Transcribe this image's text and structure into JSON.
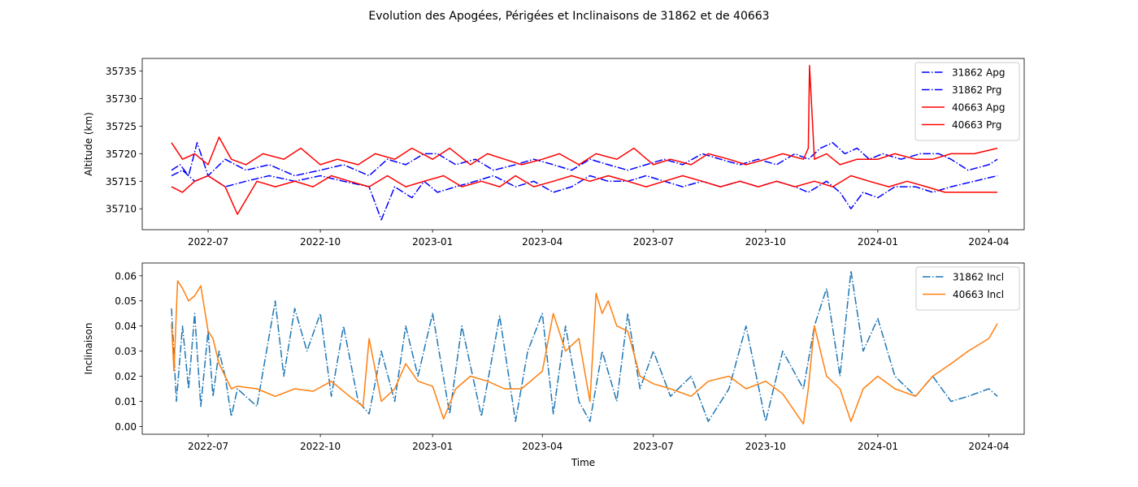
{
  "chart_data": {
    "type": "line",
    "title": "Evolution des Apogées, Périgées et Inclinaisons de 31862 et de 40663",
    "panels": [
      {
        "id": "altitude",
        "ylabel": "Altitude (km)",
        "xlabel": "",
        "ylim": [
          35706.2,
          35737.3
        ],
        "xlim": [
          "2022-05-08",
          "2024-04-30"
        ],
        "yticks": [
          35710,
          35715,
          35720,
          35725,
          35730,
          35735
        ],
        "xticks": [
          "2022-07",
          "2022-10",
          "2023-01",
          "2023-04",
          "2023-07",
          "2023-10",
          "2024-01",
          "2024-04"
        ],
        "legend": "top-right",
        "series": [
          {
            "name": "31862 Apg",
            "color": "#0000ff",
            "style": "dashdot",
            "x": [
              "2022-06-01",
              "2022-06-08",
              "2022-06-15",
              "2022-06-22",
              "2022-07-01",
              "2022-07-15",
              "2022-08-01",
              "2022-08-20",
              "2022-09-10",
              "2022-10-01",
              "2022-10-20",
              "2022-11-10",
              "2022-11-25",
              "2022-12-10",
              "2022-12-25",
              "2023-01-05",
              "2023-01-20",
              "2023-02-05",
              "2023-02-20",
              "2023-03-10",
              "2023-03-25",
              "2023-04-10",
              "2023-04-25",
              "2023-05-10",
              "2023-05-25",
              "2023-06-10",
              "2023-06-25",
              "2023-07-10",
              "2023-07-25",
              "2023-08-10",
              "2023-08-25",
              "2023-09-10",
              "2023-09-25",
              "2023-10-10",
              "2023-10-25",
              "2023-11-05",
              "2023-11-15",
              "2023-11-25",
              "2023-12-05",
              "2023-12-15",
              "2023-12-25",
              "2024-01-05",
              "2024-01-20",
              "2024-02-05",
              "2024-02-20",
              "2024-03-01",
              "2024-03-15",
              "2024-04-01",
              "2024-04-08"
            ],
            "y": [
              35717,
              35718,
              35716,
              35722,
              35716,
              35719,
              35717,
              35718,
              35716,
              35717,
              35718,
              35716,
              35719,
              35718,
              35720,
              35720,
              35718,
              35719,
              35717,
              35718,
              35719,
              35718,
              35717,
              35719,
              35718,
              35717,
              35718,
              35719,
              35718,
              35720,
              35719,
              35718,
              35719,
              35718,
              35720,
              35719,
              35721,
              35722,
              35720,
              35721,
              35719,
              35720,
              35719,
              35720,
              35720,
              35719,
              35717,
              35718,
              35719
            ]
          },
          {
            "name": "31862 Prg",
            "color": "#0000ff",
            "style": "dashdot",
            "x": [
              "2022-06-01",
              "2022-06-10",
              "2022-06-20",
              "2022-07-01",
              "2022-07-15",
              "2022-08-01",
              "2022-08-20",
              "2022-09-10",
              "2022-10-01",
              "2022-10-20",
              "2022-11-10",
              "2022-11-20",
              "2022-12-01",
              "2022-12-15",
              "2022-12-25",
              "2023-01-05",
              "2023-01-20",
              "2023-02-05",
              "2023-02-20",
              "2023-03-10",
              "2023-03-25",
              "2023-04-10",
              "2023-04-25",
              "2023-05-10",
              "2023-05-25",
              "2023-06-10",
              "2023-06-25",
              "2023-07-10",
              "2023-07-25",
              "2023-08-10",
              "2023-08-25",
              "2023-09-10",
              "2023-09-25",
              "2023-10-10",
              "2023-10-25",
              "2023-11-05",
              "2023-11-20",
              "2023-12-01",
              "2023-12-10",
              "2023-12-20",
              "2024-01-01",
              "2024-01-15",
              "2024-02-01",
              "2024-02-15",
              "2024-03-01",
              "2024-03-20",
              "2024-04-08"
            ],
            "y": [
              35716,
              35717,
              35715,
              35716,
              35714,
              35715,
              35716,
              35715,
              35716,
              35715,
              35714,
              35708,
              35714,
              35712,
              35715,
              35713,
              35714,
              35715,
              35716,
              35714,
              35715,
              35713,
              35714,
              35716,
              35715,
              35715,
              35716,
              35715,
              35714,
              35715,
              35714,
              35715,
              35714,
              35715,
              35714,
              35713,
              35715,
              35713,
              35710,
              35713,
              35712,
              35714,
              35714,
              35713,
              35714,
              35715,
              35716
            ]
          },
          {
            "name": "40663 Apg",
            "color": "#ff0000",
            "style": "solid",
            "x": [
              "2022-06-01",
              "2022-06-10",
              "2022-06-20",
              "2022-07-01",
              "2022-07-10",
              "2022-07-20",
              "2022-08-01",
              "2022-08-15",
              "2022-09-01",
              "2022-09-15",
              "2022-10-01",
              "2022-10-15",
              "2022-11-01",
              "2022-11-15",
              "2022-12-01",
              "2022-12-15",
              "2023-01-01",
              "2023-01-15",
              "2023-02-01",
              "2023-02-15",
              "2023-03-01",
              "2023-03-15",
              "2023-04-01",
              "2023-04-15",
              "2023-05-01",
              "2023-05-15",
              "2023-06-01",
              "2023-06-15",
              "2023-07-01",
              "2023-07-15",
              "2023-08-01",
              "2023-08-15",
              "2023-09-01",
              "2023-09-15",
              "2023-10-01",
              "2023-10-15",
              "2023-11-01",
              "2023-11-05",
              "2023-11-06",
              "2023-11-10",
              "2023-11-20",
              "2023-12-01",
              "2023-12-15",
              "2024-01-01",
              "2024-01-15",
              "2024-02-01",
              "2024-02-15",
              "2024-03-01",
              "2024-03-20",
              "2024-04-08"
            ],
            "y": [
              35722,
              35719,
              35720,
              35718,
              35723,
              35719,
              35718,
              35720,
              35719,
              35721,
              35718,
              35719,
              35718,
              35720,
              35719,
              35721,
              35719,
              35721,
              35718,
              35720,
              35719,
              35718,
              35719,
              35720,
              35718,
              35720,
              35719,
              35721,
              35718,
              35719,
              35718,
              35720,
              35719,
              35718,
              35719,
              35720,
              35719,
              35721,
              35736,
              35719,
              35720,
              35718,
              35719,
              35719,
              35720,
              35719,
              35719,
              35720,
              35720,
              35721
            ]
          },
          {
            "name": "40663 Prg",
            "color": "#ff0000",
            "style": "solid",
            "x": [
              "2022-06-01",
              "2022-06-10",
              "2022-06-20",
              "2022-07-01",
              "2022-07-15",
              "2022-07-25",
              "2022-08-10",
              "2022-08-25",
              "2022-09-10",
              "2022-09-25",
              "2022-10-10",
              "2022-10-25",
              "2022-11-10",
              "2022-11-25",
              "2022-12-10",
              "2022-12-25",
              "2023-01-10",
              "2023-01-25",
              "2023-02-10",
              "2023-02-25",
              "2023-03-10",
              "2023-03-25",
              "2023-04-10",
              "2023-04-25",
              "2023-05-10",
              "2023-05-25",
              "2023-06-10",
              "2023-06-25",
              "2023-07-10",
              "2023-07-25",
              "2023-08-10",
              "2023-08-25",
              "2023-09-10",
              "2023-09-25",
              "2023-10-10",
              "2023-10-25",
              "2023-11-10",
              "2023-11-25",
              "2023-12-10",
              "2023-12-25",
              "2024-01-10",
              "2024-01-25",
              "2024-02-10",
              "2024-02-25",
              "2024-03-15",
              "2024-04-08"
            ],
            "y": [
              35714,
              35713,
              35715,
              35716,
              35714,
              35709,
              35715,
              35714,
              35715,
              35714,
              35716,
              35715,
              35714,
              35716,
              35714,
              35715,
              35716,
              35714,
              35715,
              35714,
              35716,
              35714,
              35715,
              35716,
              35715,
              35716,
              35715,
              35714,
              35715,
              35716,
              35715,
              35714,
              35715,
              35714,
              35715,
              35714,
              35715,
              35714,
              35716,
              35715,
              35714,
              35715,
              35714,
              35713,
              35713,
              35713
            ]
          }
        ]
      },
      {
        "id": "inclination",
        "ylabel": "Inclinaison",
        "xlabel": "Time",
        "ylim": [
          -0.0031,
          0.0651
        ],
        "xlim": [
          "2022-05-08",
          "2024-04-30"
        ],
        "yticks": [
          0.0,
          0.01,
          0.02,
          0.03,
          0.04,
          0.05,
          0.06
        ],
        "ytick_labels": [
          "0.00",
          "0.01",
          "0.02",
          "0.03",
          "0.04",
          "0.05",
          "0.06"
        ],
        "xticks": [
          "2022-07",
          "2022-10",
          "2023-01",
          "2023-04",
          "2023-07",
          "2023-10",
          "2024-01",
          "2024-04"
        ],
        "legend": "top-right",
        "series": [
          {
            "name": "31862 Incl",
            "color": "#1f77b4",
            "style": "dashdot",
            "x": [
              "2022-06-01",
              "2022-06-05",
              "2022-06-10",
              "2022-06-15",
              "2022-06-20",
              "2022-06-25",
              "2022-07-01",
              "2022-07-05",
              "2022-07-10",
              "2022-07-15",
              "2022-07-20",
              "2022-07-25",
              "2022-08-10",
              "2022-08-25",
              "2022-09-01",
              "2022-09-10",
              "2022-09-20",
              "2022-10-01",
              "2022-10-10",
              "2022-10-20",
              "2022-11-01",
              "2022-11-10",
              "2022-11-20",
              "2022-12-01",
              "2022-12-10",
              "2022-12-20",
              "2023-01-01",
              "2023-01-15",
              "2023-01-25",
              "2023-02-10",
              "2023-02-25",
              "2023-03-10",
              "2023-03-20",
              "2023-04-01",
              "2023-04-10",
              "2023-04-20",
              "2023-05-01",
              "2023-05-10",
              "2023-05-20",
              "2023-06-01",
              "2023-06-10",
              "2023-06-20",
              "2023-07-01",
              "2023-07-15",
              "2023-08-01",
              "2023-08-15",
              "2023-09-01",
              "2023-09-15",
              "2023-10-01",
              "2023-10-15",
              "2023-11-01",
              "2023-11-10",
              "2023-11-20",
              "2023-12-01",
              "2023-12-10",
              "2023-12-20",
              "2024-01-01",
              "2024-01-15",
              "2024-02-01",
              "2024-02-15",
              "2024-03-01",
              "2024-03-15",
              "2024-04-01",
              "2024-04-08"
            ],
            "y": [
              0.047,
              0.01,
              0.04,
              0.015,
              0.045,
              0.008,
              0.038,
              0.012,
              0.03,
              0.02,
              0.004,
              0.015,
              0.008,
              0.05,
              0.02,
              0.047,
              0.03,
              0.045,
              0.012,
              0.04,
              0.01,
              0.005,
              0.03,
              0.01,
              0.04,
              0.02,
              0.045,
              0.005,
              0.04,
              0.004,
              0.044,
              0.002,
              0.03,
              0.045,
              0.005,
              0.04,
              0.01,
              0.002,
              0.03,
              0.01,
              0.045,
              0.015,
              0.03,
              0.012,
              0.02,
              0.002,
              0.015,
              0.04,
              0.002,
              0.03,
              0.015,
              0.04,
              0.055,
              0.02,
              0.062,
              0.03,
              0.043,
              0.02,
              0.012,
              0.02,
              0.01,
              0.012,
              0.015,
              0.012
            ]
          },
          {
            "name": "40663 Incl",
            "color": "#ff7f0e",
            "style": "solid",
            "x": [
              "2022-06-01",
              "2022-06-03",
              "2022-06-06",
              "2022-06-10",
              "2022-06-15",
              "2022-06-20",
              "2022-06-25",
              "2022-07-01",
              "2022-07-05",
              "2022-07-10",
              "2022-07-15",
              "2022-07-20",
              "2022-07-25",
              "2022-08-10",
              "2022-08-25",
              "2022-09-10",
              "2022-09-25",
              "2022-10-10",
              "2022-10-25",
              "2022-11-05",
              "2022-11-10",
              "2022-11-20",
              "2022-12-01",
              "2022-12-10",
              "2022-12-20",
              "2023-01-01",
              "2023-01-10",
              "2023-01-20",
              "2023-02-01",
              "2023-02-15",
              "2023-03-01",
              "2023-03-15",
              "2023-04-01",
              "2023-04-10",
              "2023-04-20",
              "2023-05-01",
              "2023-05-10",
              "2023-05-15",
              "2023-05-20",
              "2023-05-25",
              "2023-06-01",
              "2023-06-10",
              "2023-06-20",
              "2023-07-01",
              "2023-07-15",
              "2023-08-01",
              "2023-08-15",
              "2023-09-01",
              "2023-09-15",
              "2023-10-01",
              "2023-10-15",
              "2023-11-01",
              "2023-11-05",
              "2023-11-10",
              "2023-11-20",
              "2023-12-01",
              "2023-12-10",
              "2023-12-20",
              "2024-01-01",
              "2024-01-15",
              "2024-02-01",
              "2024-02-15",
              "2024-03-01",
              "2024-03-15",
              "2024-04-01",
              "2024-04-08"
            ],
            "y": [
              0.041,
              0.022,
              0.058,
              0.055,
              0.05,
              0.052,
              0.056,
              0.038,
              0.035,
              0.025,
              0.02,
              0.015,
              0.016,
              0.015,
              0.012,
              0.015,
              0.014,
              0.018,
              0.012,
              0.008,
              0.035,
              0.01,
              0.015,
              0.025,
              0.018,
              0.016,
              0.003,
              0.015,
              0.02,
              0.018,
              0.015,
              0.015,
              0.022,
              0.045,
              0.03,
              0.035,
              0.01,
              0.053,
              0.045,
              0.05,
              0.04,
              0.038,
              0.02,
              0.017,
              0.015,
              0.012,
              0.018,
              0.02,
              0.015,
              0.018,
              0.013,
              0.001,
              0.015,
              0.04,
              0.02,
              0.015,
              0.002,
              0.015,
              0.02,
              0.015,
              0.012,
              0.02,
              0.025,
              0.03,
              0.035,
              0.041
            ]
          }
        ]
      }
    ]
  }
}
